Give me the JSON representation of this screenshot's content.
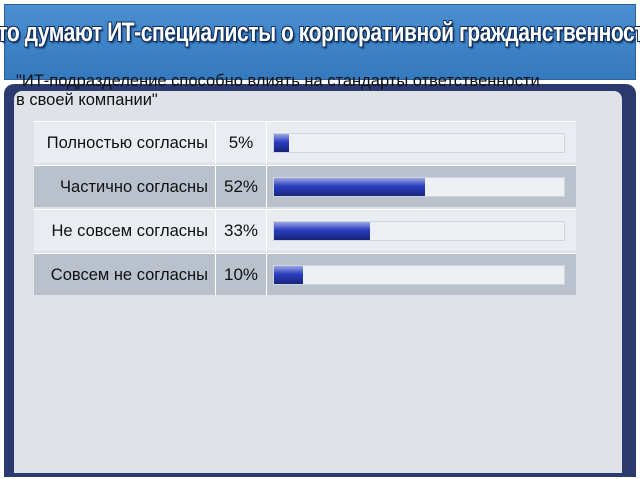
{
  "header": {
    "title": "Что думают ИТ-специалисты о корпоративной гражданственности"
  },
  "chart_data": {
    "type": "bar",
    "orientation": "horizontal",
    "title": "\"ИТ-подразделение способно влиять на стандарты ответственности в своей компании\"",
    "title_lines": [
      "\"ИТ-подразделение способно влиять на стандарты ответственности",
      "в своей компании\""
    ],
    "categories": [
      "Полностью согласны",
      "Частично согласны",
      "Не совсем согласны",
      "Совсем не согласны"
    ],
    "values": [
      5,
      52,
      33,
      10
    ],
    "value_labels": [
      "5%",
      "52%",
      "33%",
      "10%"
    ],
    "unit": "%",
    "xlim": [
      0,
      100
    ],
    "grid": false,
    "legend": "none"
  },
  "colors": {
    "title_bar": "#3b7fc4",
    "panel_border": "#2b3a6e",
    "panel_bg": "#dfe3e8",
    "row_light": "#e9ecf0",
    "row_dark": "#b9c1cc",
    "bar": "#2a3ec0"
  }
}
